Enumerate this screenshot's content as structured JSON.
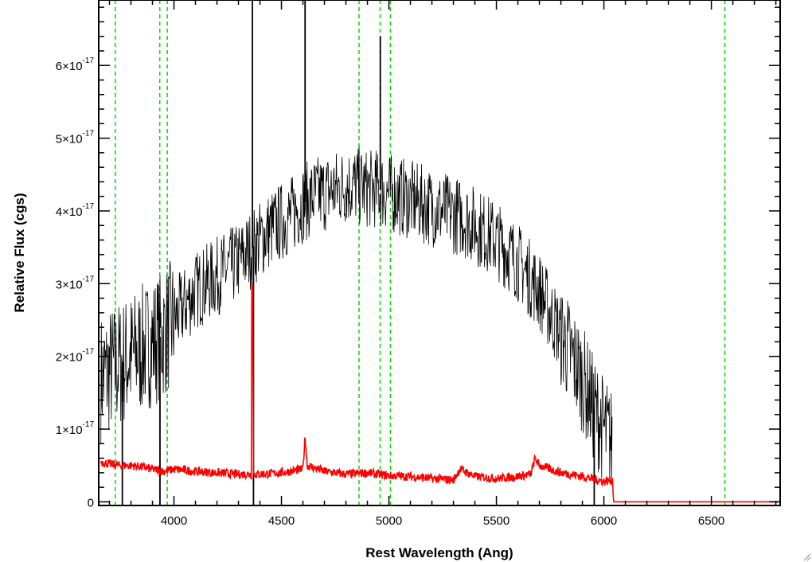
{
  "chart_data": {
    "type": "line",
    "xlabel": "Rest Wavelength (Ang)",
    "ylabel": "Relative Flux (cgs)",
    "xlim": [
      3650,
      6820
    ],
    "ylim": [
      -5e-19,
      6.9e-17
    ],
    "x_ticks": [
      4000,
      4500,
      5000,
      5500,
      6000,
      6500
    ],
    "x_tick_labels": [
      "4000",
      "4500",
      "5000",
      "5500",
      "6000",
      "6500"
    ],
    "y_ticks": [
      {
        "value": 0,
        "mantissa": "0",
        "exponent": ""
      },
      {
        "value": 1e-17,
        "mantissa": "1×10",
        "exponent": "-17"
      },
      {
        "value": 2e-17,
        "mantissa": "2×10",
        "exponent": "-17"
      },
      {
        "value": 3e-17,
        "mantissa": "3×10",
        "exponent": "-17"
      },
      {
        "value": 4e-17,
        "mantissa": "4×10",
        "exponent": "-17"
      },
      {
        "value": 5e-17,
        "mantissa": "5×10",
        "exponent": "-17"
      },
      {
        "value": 6e-17,
        "mantissa": "6×10",
        "exponent": "-17"
      }
    ],
    "grid": false,
    "colors": {
      "spectrum": "#000000",
      "error": "#ff0000",
      "lines": "#00dd00"
    },
    "line_markers_x": [
      3727,
      3934,
      3969,
      4861,
      4959,
      5007,
      6563
    ],
    "spectrum": {
      "x": [
        3660,
        3700,
        3750,
        3800,
        3850,
        3900,
        3950,
        4000,
        4050,
        4100,
        4150,
        4200,
        4250,
        4300,
        4350,
        4400,
        4450,
        4500,
        4550,
        4600,
        4650,
        4700,
        4750,
        4800,
        4850,
        4900,
        4950,
        5000,
        5050,
        5100,
        5150,
        5200,
        5250,
        5300,
        5350,
        5400,
        5450,
        5500,
        5550,
        5600,
        5650,
        5700,
        5750,
        5800,
        5850,
        5900,
        5950,
        6000,
        6040
      ],
      "y": [
        1.7e-17,
        1.8e-17,
        1.9e-17,
        2e-17,
        2.1e-17,
        2.2e-17,
        2.3e-17,
        2.5e-17,
        2.7e-17,
        2.9e-17,
        3e-17,
        3.1e-17,
        3.2e-17,
        3.3e-17,
        3.45e-17,
        3.6e-17,
        3.75e-17,
        3.85e-17,
        3.95e-17,
        4.1e-17,
        4.2e-17,
        4.25e-17,
        4.3e-17,
        4.35e-17,
        4.35e-17,
        4.3e-17,
        4.3e-17,
        4.25e-17,
        4.2e-17,
        4.15e-17,
        4.1e-17,
        4.05e-17,
        4e-17,
        3.95e-17,
        3.9e-17,
        3.8e-17,
        3.7e-17,
        3.6e-17,
        3.45e-17,
        3.3e-17,
        3.1e-17,
        2.9e-17,
        2.6e-17,
        2.3e-17,
        2e-17,
        1.7e-17,
        1.3e-17,
        1e-17,
        8e-18
      ],
      "spikes": [
        {
          "x": 4365,
          "y": 7e-17
        },
        {
          "x": 4370,
          "y": -5e-19
        },
        {
          "x": 4610,
          "y": 6.9e-17
        },
        {
          "x": 4960,
          "y": 6.4e-17
        },
        {
          "x": 3935,
          "y": -5e-19
        },
        {
          "x": 3760,
          "y": -5e-19
        },
        {
          "x": 5955,
          "y": -5e-19
        }
      ]
    },
    "error": {
      "x": [
        3660,
        3700,
        3750,
        3800,
        3850,
        3900,
        3950,
        4000,
        4100,
        4200,
        4300,
        4360,
        4362,
        4366,
        4370,
        4400,
        4500,
        4600,
        4610,
        4620,
        4700,
        4800,
        4900,
        5000,
        5100,
        5200,
        5300,
        5330,
        5400,
        5500,
        5600,
        5660,
        5680,
        5700,
        5800,
        5900,
        6000,
        6040,
        6045,
        6050,
        6820
      ],
      "y": [
        5.5e-18,
        5.2e-18,
        5e-18,
        5e-18,
        4.8e-18,
        4.5e-18,
        4.2e-18,
        4.5e-18,
        4.2e-18,
        4e-18,
        3.8e-18,
        3.8e-18,
        3e-17,
        3e-17,
        3.8e-18,
        3.8e-18,
        4e-18,
        4.5e-18,
        9e-18,
        5e-18,
        4.2e-18,
        3.8e-18,
        4e-18,
        3.6e-18,
        3.5e-18,
        3.2e-18,
        3e-18,
        4.5e-18,
        3.5e-18,
        3.2e-18,
        3.5e-18,
        3.8e-18,
        6e-18,
        5e-18,
        4e-18,
        3.5e-18,
        2.8e-18,
        3e-18,
        0.0,
        0.0,
        0.0
      ]
    }
  }
}
